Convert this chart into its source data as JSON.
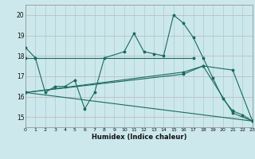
{
  "title": "",
  "xlabel": "Humidex (Indice chaleur)",
  "xlim": [
    0,
    23
  ],
  "ylim": [
    14.5,
    20.5
  ],
  "yticks": [
    15,
    16,
    17,
    18,
    19,
    20
  ],
  "xticks": [
    0,
    1,
    2,
    3,
    4,
    5,
    6,
    7,
    8,
    9,
    10,
    11,
    12,
    13,
    14,
    15,
    16,
    17,
    18,
    19,
    20,
    21,
    22,
    23
  ],
  "bg_color": "#cce8ec",
  "grid_color_major": "#aacccc",
  "grid_color_minor": "#ffb0b0",
  "line_color": "#1a6b5e",
  "line1_x": [
    0,
    1,
    2,
    3,
    4,
    5,
    6,
    7,
    8,
    10,
    11,
    12,
    13,
    14,
    15,
    16,
    17,
    18,
    19,
    20,
    21,
    22,
    23
  ],
  "line1_y": [
    18.4,
    17.9,
    16.2,
    16.5,
    16.5,
    16.8,
    15.4,
    16.2,
    17.9,
    18.2,
    19.1,
    18.2,
    18.1,
    18.0,
    20.0,
    19.6,
    18.9,
    17.9,
    16.9,
    15.9,
    15.3,
    15.1,
    14.8
  ],
  "line2_x": [
    0,
    1,
    17
  ],
  "line2_y": [
    17.9,
    17.9,
    17.9
  ],
  "line3_x": [
    0,
    23
  ],
  "line3_y": [
    16.2,
    14.8
  ],
  "line4_x": [
    0,
    16,
    18,
    21,
    23
  ],
  "line4_y": [
    16.2,
    17.2,
    17.5,
    15.2,
    14.8
  ],
  "line5_x": [
    0,
    16,
    18,
    21,
    23
  ],
  "line5_y": [
    16.2,
    17.1,
    17.5,
    17.3,
    14.8
  ]
}
